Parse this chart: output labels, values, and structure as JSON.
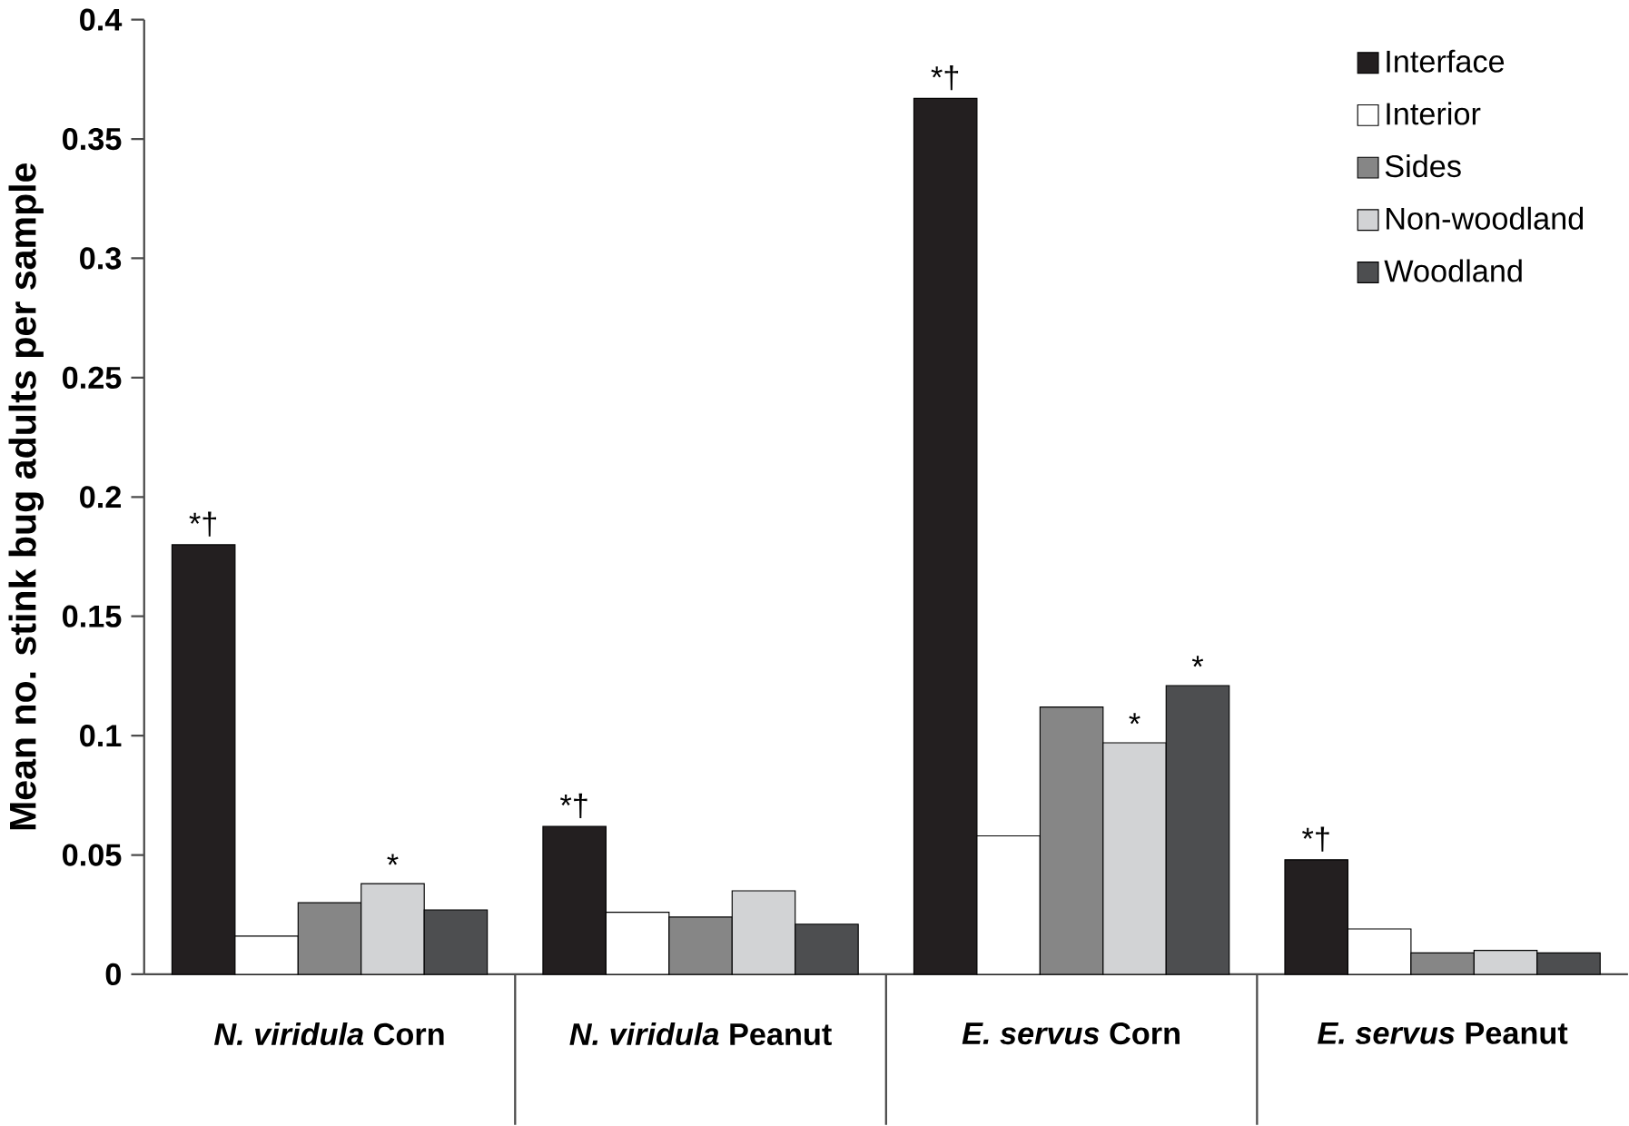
{
  "chart_data": {
    "type": "bar",
    "ylabel": "Mean no. stink bug adults per sample",
    "categories": [
      "*N. viridula* Corn",
      "*N. viridula* Peanut",
      "*E. servus* Corn",
      "*E. servus* Peanut"
    ],
    "series": [
      {
        "name": "Interface",
        "color": "#231f20",
        "values": [
          0.18,
          0.062,
          0.367,
          0.048
        ]
      },
      {
        "name": "Interior",
        "color": "#ffffff",
        "values": [
          0.016,
          0.026,
          0.058,
          0.019
        ]
      },
      {
        "name": "Sides",
        "color": "#868686",
        "values": [
          0.03,
          0.024,
          0.112,
          0.009
        ]
      },
      {
        "name": "Non-woodland",
        "color": "#d2d3d5",
        "values": [
          0.038,
          0.035,
          0.097,
          0.01
        ]
      },
      {
        "name": "Woodland",
        "color": "#4d4e50",
        "values": [
          0.027,
          0.021,
          0.121,
          0.009
        ]
      }
    ],
    "ylim": [
      0,
      0.4
    ],
    "yticks": [
      0,
      0.05,
      0.1,
      0.15,
      0.2,
      0.25,
      0.3,
      0.35,
      0.4
    ],
    "legend": "top right",
    "grid": false,
    "annotations": [
      "*†",
      "*",
      "*†",
      "*†",
      "*",
      "*",
      "*†"
    ]
  }
}
